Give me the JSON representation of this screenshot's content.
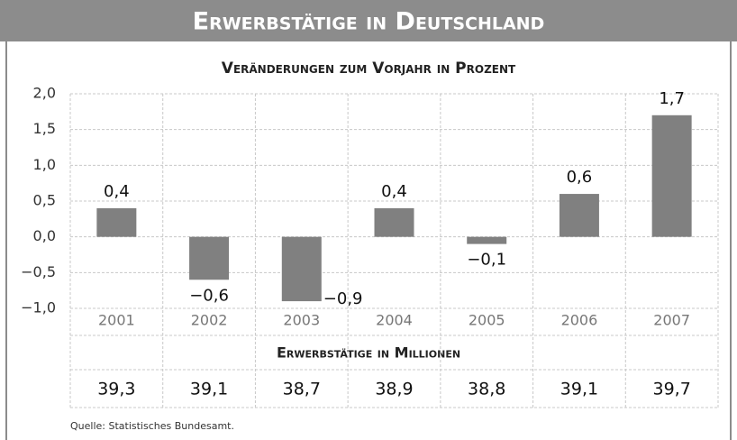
{
  "chart_data": {
    "type": "bar",
    "title": "Erwerbstätige in Deutschland",
    "subtitle": "Veränderungen zum Vorjahr in Prozent",
    "categories": [
      "2001",
      "2002",
      "2003",
      "2004",
      "2005",
      "2006",
      "2007"
    ],
    "values": [
      0.4,
      -0.6,
      -0.9,
      0.4,
      -0.1,
      0.6,
      1.7
    ],
    "value_labels": [
      "0,4",
      "−0,6",
      "−0,9",
      "0,4",
      "−0,1",
      "0,6",
      "1,7"
    ],
    "color": "#808080",
    "ylim": [
      -1,
      2
    ],
    "yticks": [
      {
        "value": -1,
        "label": "−1,0"
      },
      {
        "value": -0.5,
        "label": "−0,5"
      },
      {
        "value": 0,
        "label": "0,0"
      },
      {
        "value": 0.5,
        "label": "0,5"
      },
      {
        "value": 1,
        "label": "1,0"
      },
      {
        "value": 1.5,
        "label": "1,5"
      },
      {
        "value": 2,
        "label": "2,0"
      }
    ],
    "grid": true
  },
  "table": {
    "title": "Erwerbstätige in Millionen",
    "values": [
      "39,3",
      "39,1",
      "38,7",
      "38,9",
      "38,8",
      "39,1",
      "39,7"
    ]
  },
  "source": "Quelle: Statistisches Bundesamt."
}
